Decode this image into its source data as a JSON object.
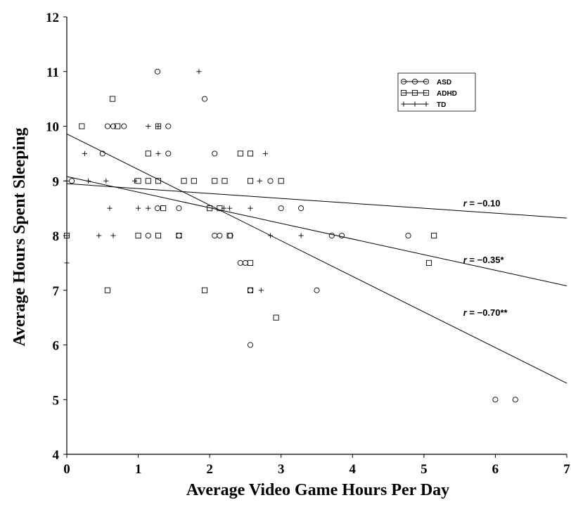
{
  "chart_data": {
    "type": "scatter",
    "title": "",
    "xlabel": "Average Video Game Hours Per Day",
    "ylabel": "Average Hours Spent Sleeping",
    "xlim": [
      0,
      7
    ],
    "ylim": [
      4,
      12
    ],
    "xticks": [
      "0",
      "1",
      "2",
      "3",
      "4",
      "5",
      "6",
      "7"
    ],
    "yticks": [
      "4",
      "5",
      "6",
      "7",
      "8",
      "9",
      "10",
      "11",
      "12"
    ],
    "grid": false,
    "legend_position": "top-right",
    "series": [
      {
        "name": "ASD",
        "marker": "circle",
        "points": [
          [
            0.07,
            9
          ],
          [
            0.57,
            10
          ],
          [
            0.65,
            10
          ],
          [
            0.8,
            10
          ],
          [
            1.27,
            11
          ],
          [
            1.42,
            10
          ],
          [
            0.5,
            9.5
          ],
          [
            1.42,
            9.5
          ],
          [
            2.07,
            9.5
          ],
          [
            1.93,
            10.5
          ],
          [
            1.27,
            8.5
          ],
          [
            1.57,
            8.5
          ],
          [
            1.14,
            8
          ],
          [
            1.57,
            8
          ],
          [
            2.07,
            8
          ],
          [
            2.14,
            8
          ],
          [
            2.29,
            8
          ],
          [
            2.43,
            7.5
          ],
          [
            2.5,
            7.5
          ],
          [
            2.57,
            7
          ],
          [
            2.57,
            6
          ],
          [
            2.85,
            9
          ],
          [
            3.0,
            8.5
          ],
          [
            3.28,
            8.5
          ],
          [
            3.5,
            7
          ],
          [
            3.71,
            8
          ],
          [
            3.85,
            8
          ],
          [
            4.78,
            8
          ],
          [
            6.0,
            5
          ],
          [
            6.28,
            5
          ]
        ]
      },
      {
        "name": "ADHD",
        "marker": "square",
        "points": [
          [
            0.0,
            8
          ],
          [
            0.21,
            10
          ],
          [
            0.57,
            7
          ],
          [
            0.64,
            10.5
          ],
          [
            0.71,
            10
          ],
          [
            1.0,
            9
          ],
          [
            1.0,
            8
          ],
          [
            1.14,
            9.5
          ],
          [
            1.14,
            9
          ],
          [
            1.28,
            10
          ],
          [
            1.28,
            9
          ],
          [
            1.28,
            8
          ],
          [
            1.35,
            8.5
          ],
          [
            1.57,
            8
          ],
          [
            1.64,
            9
          ],
          [
            1.78,
            9
          ],
          [
            1.93,
            7
          ],
          [
            2.0,
            8.5
          ],
          [
            2.07,
            9
          ],
          [
            2.14,
            8.5
          ],
          [
            2.21,
            9
          ],
          [
            2.28,
            8
          ],
          [
            2.43,
            9.5
          ],
          [
            2.57,
            9.5
          ],
          [
            2.57,
            9
          ],
          [
            2.57,
            7.5
          ],
          [
            2.57,
            7
          ],
          [
            2.93,
            6.5
          ],
          [
            3.0,
            9
          ],
          [
            5.07,
            7.5
          ],
          [
            5.14,
            8
          ]
        ]
      },
      {
        "name": "TD",
        "marker": "plus",
        "points": [
          [
            0.0,
            9
          ],
          [
            0.0,
            7.5
          ],
          [
            0.0,
            8
          ],
          [
            0.25,
            9.5
          ],
          [
            0.3,
            9
          ],
          [
            0.45,
            8
          ],
          [
            0.55,
            9
          ],
          [
            0.6,
            8.5
          ],
          [
            0.65,
            8
          ],
          [
            0.95,
            9
          ],
          [
            1.0,
            8.5
          ],
          [
            1.14,
            10
          ],
          [
            1.14,
            8.5
          ],
          [
            1.28,
            9.5
          ],
          [
            1.28,
            10
          ],
          [
            1.85,
            11
          ],
          [
            2.28,
            8.5
          ],
          [
            2.7,
            9
          ],
          [
            2.72,
            7
          ],
          [
            2.78,
            9.5
          ],
          [
            2.85,
            8
          ],
          [
            3.28,
            8
          ],
          [
            2.57,
            8.5
          ],
          [
            2.2,
            8.5
          ]
        ]
      }
    ],
    "fit_lines": [
      {
        "label": "r = −0.10",
        "r_letter": "r",
        "r_value": " = −0.10",
        "x": [
          0,
          7
        ],
        "y": [
          8.95,
          8.32
        ]
      },
      {
        "label": "r = −0.35*",
        "r_letter": "r",
        "r_value": " = −0.35*",
        "x": [
          0,
          7
        ],
        "y": [
          9.08,
          7.08
        ]
      },
      {
        "label": "r = −0.70**",
        "r_letter": "r",
        "r_value": " = −0.70**",
        "x": [
          0,
          7
        ],
        "y": [
          9.86,
          5.3
        ]
      }
    ]
  }
}
